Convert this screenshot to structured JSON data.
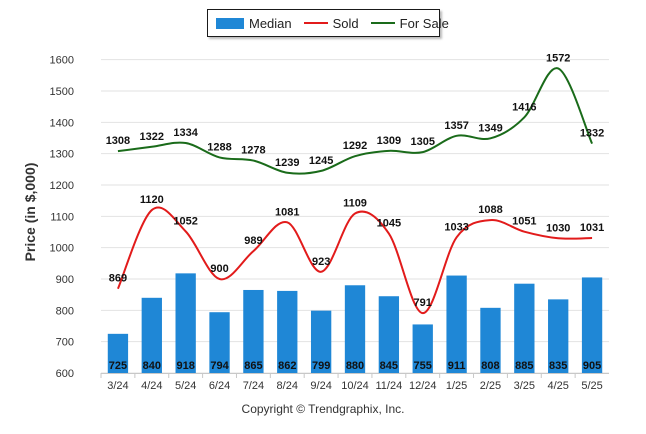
{
  "chart_data": {
    "type": "bar",
    "categories": [
      "3/24",
      "4/24",
      "5/24",
      "6/24",
      "7/24",
      "8/24",
      "9/24",
      "10/24",
      "11/24",
      "12/24",
      "1/25",
      "2/25",
      "3/25",
      "4/25",
      "5/25"
    ],
    "ylabel": "Price (in $,000)",
    "ylim": [
      600,
      1650
    ],
    "yticks": [
      600,
      700,
      800,
      900,
      1000,
      1100,
      1200,
      1300,
      1400,
      1500,
      1600
    ],
    "grid": true,
    "legend_placement": "top-center",
    "series": [
      {
        "name": "Median",
        "type": "bar",
        "color": "#1f87d6",
        "values": [
          725,
          840,
          918,
          794,
          865,
          862,
          799,
          880,
          845,
          755,
          911,
          808,
          885,
          835,
          905
        ]
      },
      {
        "name": "Sold",
        "type": "line",
        "color": "#e21b1b",
        "values": [
          869,
          1120,
          1052,
          900,
          989,
          1081,
          923,
          1109,
          1045,
          791,
          1033,
          1088,
          1051,
          1030,
          1031
        ]
      },
      {
        "name": "For Sale",
        "type": "line",
        "color": "#1a6b1a",
        "values": [
          1308,
          1322,
          1334,
          1288,
          1278,
          1239,
          1245,
          1292,
          1309,
          1305,
          1357,
          1349,
          1416,
          1572,
          1332
        ]
      }
    ]
  },
  "copyright": "Copyright © Trendgraphix, Inc."
}
